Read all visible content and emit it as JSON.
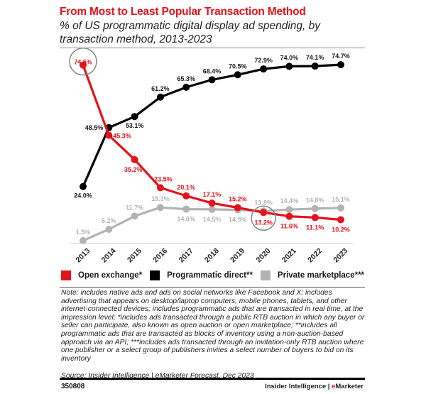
{
  "header": {
    "title": "From Most to Least Popular Transaction Method",
    "subtitle": "% of US programmatic digital display ad spending, by transaction method, 2013-2023"
  },
  "chart_data": {
    "type": "line",
    "title": "From Most to Least Popular Transaction Method",
    "subtitle": "% of US programmatic digital display ad spending, by transaction method, 2013-2023",
    "xlabel": "",
    "ylabel": "",
    "x": [
      "2013",
      "2014",
      "2015",
      "2016",
      "2017",
      "2018",
      "2019",
      "2020",
      "2021",
      "2022",
      "2023"
    ],
    "ylim": [
      0,
      80
    ],
    "grid": false,
    "legend_position": "bottom",
    "series": [
      {
        "name": "Open exchange*",
        "color": "#e3131b",
        "values": [
          74.5,
          45.3,
          35.2,
          23.5,
          20.1,
          17.1,
          15.2,
          13.2,
          11.6,
          11.1,
          10.2
        ],
        "labels": [
          "74.5%",
          "45.3%",
          "35.2%",
          "23.5%",
          "20.1%",
          "17.1%",
          "15.2%",
          "13.2%",
          "11.6%",
          "11.1%",
          "10.2%"
        ]
      },
      {
        "name": "Programmatic direct**",
        "color": "#000000",
        "values": [
          24.0,
          48.5,
          53.1,
          61.2,
          65.3,
          68.4,
          70.5,
          72.9,
          74.0,
          74.1,
          74.7
        ],
        "labels": [
          "24.0%",
          "48.5%",
          "53.1%",
          "61.2%",
          "65.3%",
          "68.4%",
          "70.5%",
          "72.9%",
          "74.0%",
          "74.1%",
          "74.7%"
        ]
      },
      {
        "name": "Private marketplace***",
        "color": "#b3b3b3",
        "values": [
          1.5,
          6.2,
          11.7,
          15.3,
          14.6,
          14.5,
          14.3,
          13.8,
          14.4,
          14.8,
          15.1
        ],
        "labels": [
          "1.5%",
          "6.2%",
          "11.7%",
          "15.3%",
          "14.6%",
          "14.5%",
          "14.3%",
          "13.8%",
          "14.4%",
          "14.8%",
          "15.1%"
        ]
      }
    ],
    "annotations": [
      {
        "type": "circle",
        "series": "Open exchange*",
        "x": "2013",
        "label": "74.5%"
      },
      {
        "type": "circle",
        "series": "Open exchange*",
        "x": "2020",
        "label": "13.2%"
      }
    ]
  },
  "legend": {
    "items": [
      {
        "label": "Open exchange*",
        "color": "#e3131b"
      },
      {
        "label": "Programmatic direct**",
        "color": "#000000"
      },
      {
        "label": "Private marketplace***",
        "color": "#b3b3b3"
      }
    ]
  },
  "footer": {
    "note": "Note: includes native ads and ads on social networks like Facebook and X; includes advertising that appears on desktop/laptop computers, mobile phones, tablets, and other internet-connected devices; includes programmatic ads that are transacted in real time, at the impression level; *includes ads transacted through a public RTB auction in which any buyer or seller can participate, also known as open auction or open marketplace; **includes all programmatic ads that are transacted as blocks of inventory using a non-auction-based approach via an API; ***includes ads transacted through an invitation-only RTB auction where one publisher or a select group of publishers invites a select number of buyers to bid on its inventory",
    "source": "Source: Insider Intelligence | eMarketer Forecast, Dec 2023",
    "chart_id": "350808",
    "brand_prefix": "Insider Intelligence | ",
    "brand_e": "e",
    "brand_suffix": "Marketer"
  }
}
